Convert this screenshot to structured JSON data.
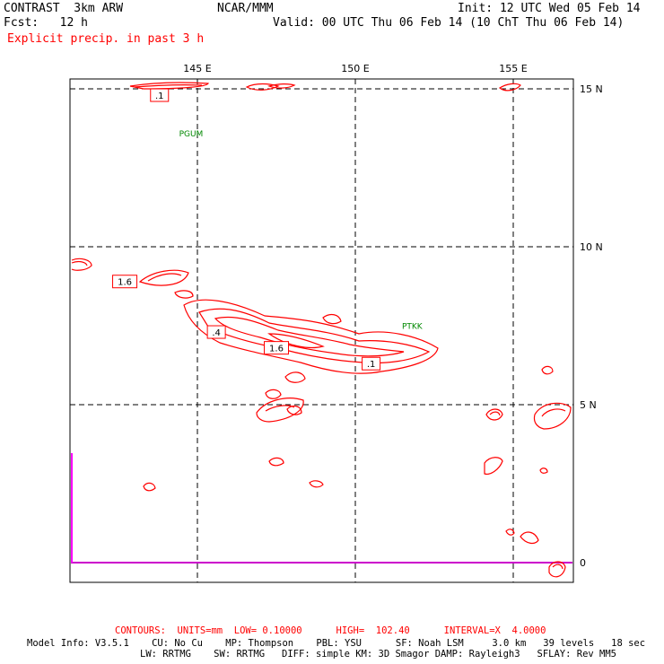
{
  "header": {
    "model": "CONTRAST  3km ARW",
    "org": "NCAR/MMM",
    "init": "Init: 12 UTC Wed 05 Feb 14",
    "fcst": "Fcst:   12 h",
    "valid": "Valid: 00 UTC Thu 06 Feb 14 (10 ChT Thu 06 Feb 14)",
    "field": "Explicit precip. in past 3 h"
  },
  "map": {
    "lon_labels": [
      "145 E",
      "150 E",
      "155 E"
    ],
    "lat_labels": [
      "15 N",
      "10 N",
      "5 N",
      "0"
    ],
    "stations": [
      {
        "id": "PGUM",
        "lon": 144.8,
        "lat": 13.5
      },
      {
        "id": "PTKK",
        "lon": 151.8,
        "lat": 7.4
      }
    ],
    "contour_labels": [
      {
        "text": ".1",
        "lon": 143.8,
        "lat": 14.8
      },
      {
        "text": "1.6",
        "lon": 142.7,
        "lat": 8.9
      },
      {
        "text": ".4",
        "lon": 145.6,
        "lat": 7.3
      },
      {
        "text": "1.6",
        "lon": 147.5,
        "lat": 6.8
      },
      {
        "text": ".1",
        "lon": 150.5,
        "lat": 6.3
      }
    ],
    "colors": {
      "precip": "#ff0000",
      "station": "#008800",
      "equator": "#cc00cc",
      "grid": "#000000"
    }
  },
  "footer": {
    "contours": "CONTOURS:  UNITS=mm  LOW= 0.10000      HIGH=  102.40      INTERVAL=X  4.0000",
    "model_info_1": "Model Info: V3.5.1    CU: No Cu    MP: Thompson    PBL: YSU      SF: Noah LSM     3.0 km   39 levels   18 sec",
    "model_info_2": "LW: RRTMG    SW: RRTMG   DIFF: simple KM: 3D Smagor DAMP: Rayleigh3   SFLAY: Rev MM5"
  }
}
